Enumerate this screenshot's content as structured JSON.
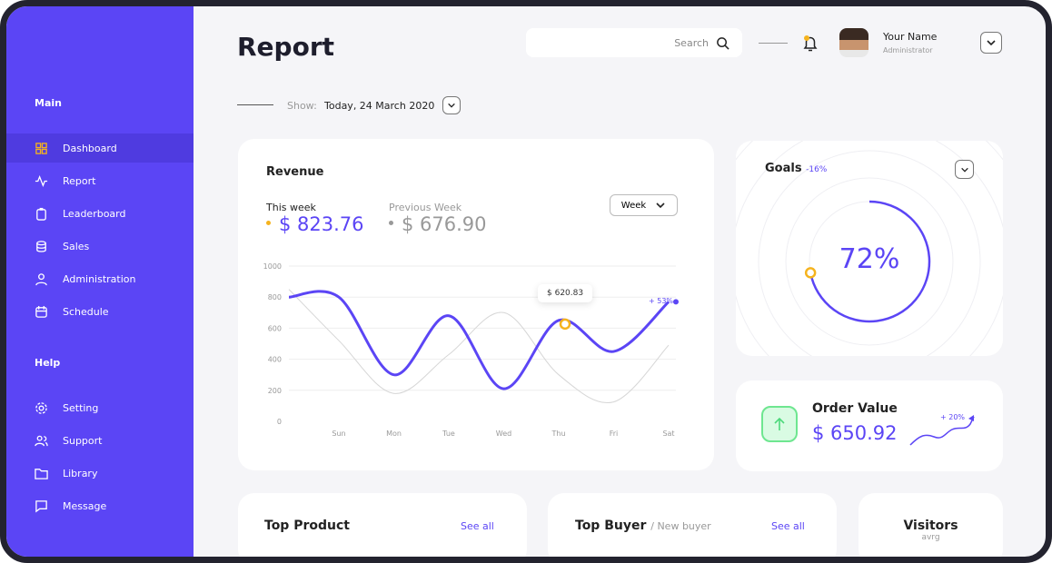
{
  "sidebar": {
    "main_label": "Main",
    "help_label": "Help",
    "items": [
      {
        "label": "Dashboard",
        "icon": "grid-icon"
      },
      {
        "label": "Report",
        "icon": "activity-icon"
      },
      {
        "label": "Leaderboard",
        "icon": "clipboard-icon"
      },
      {
        "label": "Sales",
        "icon": "database-icon"
      },
      {
        "label": "Administration",
        "icon": "user-icon"
      },
      {
        "label": "Schedule",
        "icon": "calendar-icon"
      }
    ],
    "help_items": [
      {
        "label": "Setting",
        "icon": "gear-icon"
      },
      {
        "label": "Support",
        "icon": "users-icon"
      },
      {
        "label": "Library",
        "icon": "folder-icon"
      },
      {
        "label": "Message",
        "icon": "message-icon"
      }
    ]
  },
  "header": {
    "title": "Report",
    "search_placeholder": "Search",
    "user_name": "Your Name",
    "user_role": "Administrator",
    "show_label": "Show:",
    "show_value": "Today, 24 March 2020"
  },
  "revenue": {
    "title": "Revenue",
    "this_week_label": "This week",
    "this_week_value": "$ 823.76",
    "prev_week_label": "Previous Week",
    "prev_week_value": "$ 676.90",
    "period": "Week",
    "tooltip": "$ 620.83",
    "change": "+ 53%"
  },
  "goals": {
    "title": "Goals",
    "change": "-16%",
    "percent": "72%",
    "progress": 0.72
  },
  "order": {
    "title": "Order Value",
    "value": "$ 650.92",
    "change": "+ 20%"
  },
  "bottom": {
    "top_product": "Top Product",
    "see_all": "See all",
    "top_buyer": "Top Buyer",
    "new_buyer": "/ New buyer",
    "visitors": "Visitors",
    "visitors_sub": "avrg"
  },
  "colors": {
    "accent": "#5b45f5",
    "highlight": "#f5b31e",
    "positive": "#4cd97b"
  },
  "chart_data": {
    "type": "line",
    "categories": [
      "Sun",
      "Mon",
      "Tue",
      "Wed",
      "Thu",
      "Fri",
      "Sat"
    ],
    "yticks": [
      0,
      200,
      400,
      600,
      800,
      1000
    ],
    "ylim": [
      0,
      1000
    ],
    "grid": true,
    "series": [
      {
        "start": 800,
        "values": [
          800,
          300,
          680,
          210,
          650,
          450,
          770
        ],
        "color": "#5b45f5"
      },
      {
        "start": 850,
        "values": [
          520,
          180,
          430,
          700,
          300,
          125,
          490
        ],
        "color": "#d6d6d6"
      }
    ]
  }
}
